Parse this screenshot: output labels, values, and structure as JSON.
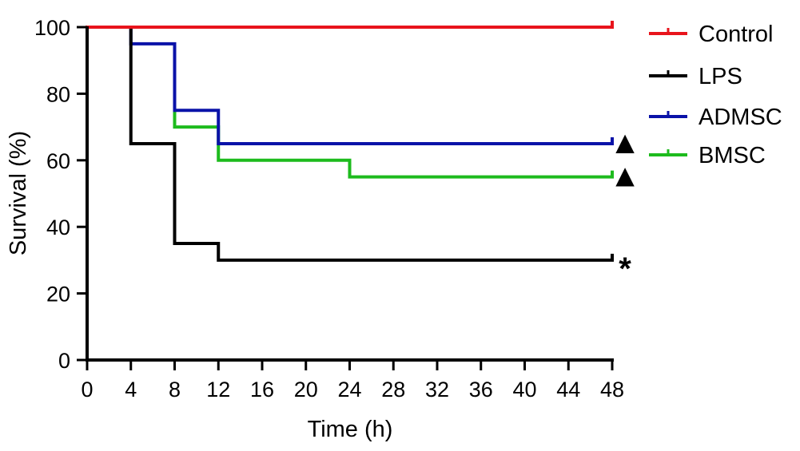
{
  "chart_data": {
    "type": "line",
    "subtype": "kaplan-meier step",
    "title": "",
    "xlabel": "Time (h)",
    "ylabel": "Survival (%)",
    "xlim": [
      0,
      48
    ],
    "ylim": [
      0,
      100
    ],
    "x_ticks": [
      "0",
      "4",
      "8",
      "12",
      "16",
      "20",
      "24",
      "28",
      "32",
      "36",
      "40",
      "44",
      "48"
    ],
    "y_ticks": [
      "0",
      "20",
      "40",
      "60",
      "80",
      "100"
    ],
    "grid": false,
    "legend_position": "right",
    "series": [
      {
        "name": "Control",
        "color": "#e8141c",
        "points": [
          [
            0,
            100
          ],
          [
            48,
            100
          ]
        ],
        "annotation": ""
      },
      {
        "name": "LPS",
        "color": "#000000",
        "points": [
          [
            0,
            100
          ],
          [
            4,
            100
          ],
          [
            4,
            65
          ],
          [
            8,
            65
          ],
          [
            8,
            35
          ],
          [
            12,
            35
          ],
          [
            12,
            30
          ],
          [
            48,
            30
          ]
        ],
        "annotation": "*"
      },
      {
        "name": "ADMSC",
        "color": "#0a12a8",
        "points": [
          [
            4,
            100
          ],
          [
            4,
            95
          ],
          [
            8,
            95
          ],
          [
            8,
            75
          ],
          [
            12,
            75
          ],
          [
            12,
            65
          ],
          [
            48,
            65
          ]
        ],
        "annotation": "▲"
      },
      {
        "name": "BMSC",
        "color": "#1dbb1d",
        "points": [
          [
            8,
            75
          ],
          [
            8,
            70
          ],
          [
            12,
            70
          ],
          [
            12,
            60
          ],
          [
            24,
            60
          ],
          [
            24,
            55
          ],
          [
            48,
            55
          ]
        ],
        "annotation": "▲"
      }
    ]
  }
}
